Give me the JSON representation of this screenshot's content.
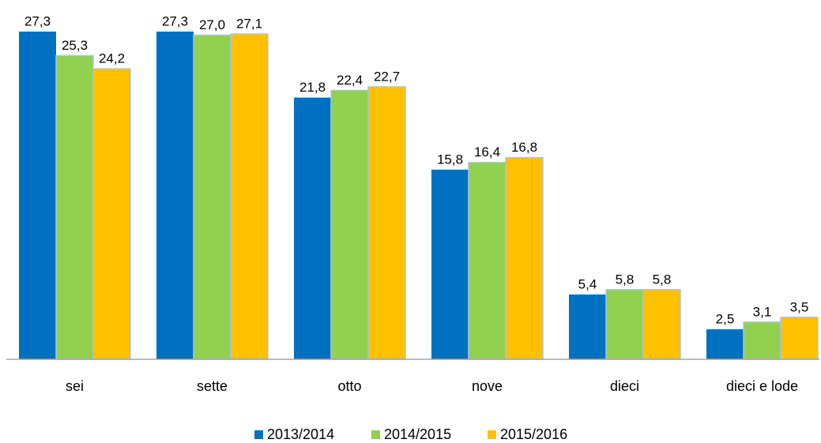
{
  "chart_data": {
    "type": "bar",
    "categories": [
      "sei",
      "sette",
      "otto",
      "nove",
      "dieci",
      "dieci e lode"
    ],
    "series": [
      {
        "name": "2013/2014",
        "color": "#0070c0",
        "values": [
          27.3,
          27.3,
          21.8,
          15.8,
          5.4,
          2.5
        ],
        "value_labels": [
          "27,3",
          "27,3",
          "21,8",
          "15,8",
          "5,4",
          "2,5"
        ]
      },
      {
        "name": "2014/2015",
        "color": "#92d050",
        "values": [
          25.3,
          27.0,
          22.4,
          16.4,
          5.8,
          3.1
        ],
        "value_labels": [
          "25,3",
          "27,0",
          "22,4",
          "16,4",
          "5,8",
          "3,1"
        ]
      },
      {
        "name": "2015/2016",
        "color": "#ffc000",
        "values": [
          24.2,
          27.1,
          22.7,
          16.8,
          5.8,
          3.5
        ],
        "value_labels": [
          "24,2",
          "27,1",
          "22,7",
          "16,8",
          "5,8",
          "3,5"
        ]
      }
    ],
    "legend": "bottom"
  }
}
